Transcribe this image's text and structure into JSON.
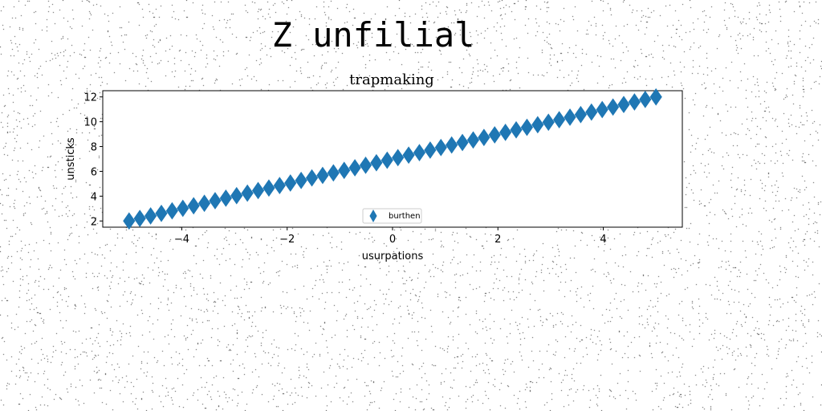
{
  "figure_title": "Z unfilial",
  "chart_data": {
    "type": "scatter",
    "title": "trapmaking",
    "xlabel": "usurpations",
    "ylabel": "unsticks",
    "xlim": [
      -5.5,
      5.5
    ],
    "ylim": [
      1.5,
      12.5
    ],
    "xticks": [
      -4,
      -2,
      0,
      2,
      4
    ],
    "xtick_labels": [
      "−4",
      "−2",
      "0",
      "2",
      "4"
    ],
    "yticks": [
      2,
      4,
      6,
      8,
      10,
      12
    ],
    "ytick_labels": [
      "2",
      "4",
      "6",
      "8",
      "10",
      "12"
    ],
    "grid": false,
    "legend_placement": "lower-center",
    "marker": "thin-diamond",
    "series": [
      {
        "name": "burthen",
        "color": "#1f77b4",
        "x": [
          -5.0,
          -4.7959,
          -4.5918,
          -4.3878,
          -4.1837,
          -3.9796,
          -3.7755,
          -3.5714,
          -3.3673,
          -3.1633,
          -2.9592,
          -2.7551,
          -2.551,
          -2.3469,
          -2.1429,
          -1.9388,
          -1.7347,
          -1.5306,
          -1.3265,
          -1.1224,
          -0.9184,
          -0.7143,
          -0.5102,
          -0.3061,
          -0.102,
          0.102,
          0.3061,
          0.5102,
          0.7143,
          0.9184,
          1.1224,
          1.3265,
          1.5306,
          1.7347,
          1.9388,
          2.1429,
          2.3469,
          2.551,
          2.7551,
          2.9592,
          3.1633,
          3.3673,
          3.5714,
          3.7755,
          3.9796,
          4.1837,
          4.3878,
          4.5918,
          4.7959,
          5.0
        ],
        "y": [
          2.0,
          2.2041,
          2.4082,
          2.6122,
          2.8163,
          3.0204,
          3.2245,
          3.4286,
          3.6327,
          3.8367,
          4.0408,
          4.2449,
          4.449,
          4.6531,
          4.8571,
          5.0612,
          5.2653,
          5.4694,
          5.6735,
          5.8776,
          6.0816,
          6.2857,
          6.4898,
          6.6939,
          6.898,
          7.102,
          7.3061,
          7.5102,
          7.7143,
          7.9184,
          8.1224,
          8.3265,
          8.5306,
          8.7347,
          8.9388,
          9.1429,
          9.3469,
          9.551,
          9.7551,
          9.9592,
          10.1633,
          10.3673,
          10.5714,
          10.7755,
          10.9796,
          11.1837,
          11.3878,
          11.5918,
          11.7959,
          12.0
        ]
      }
    ]
  }
}
